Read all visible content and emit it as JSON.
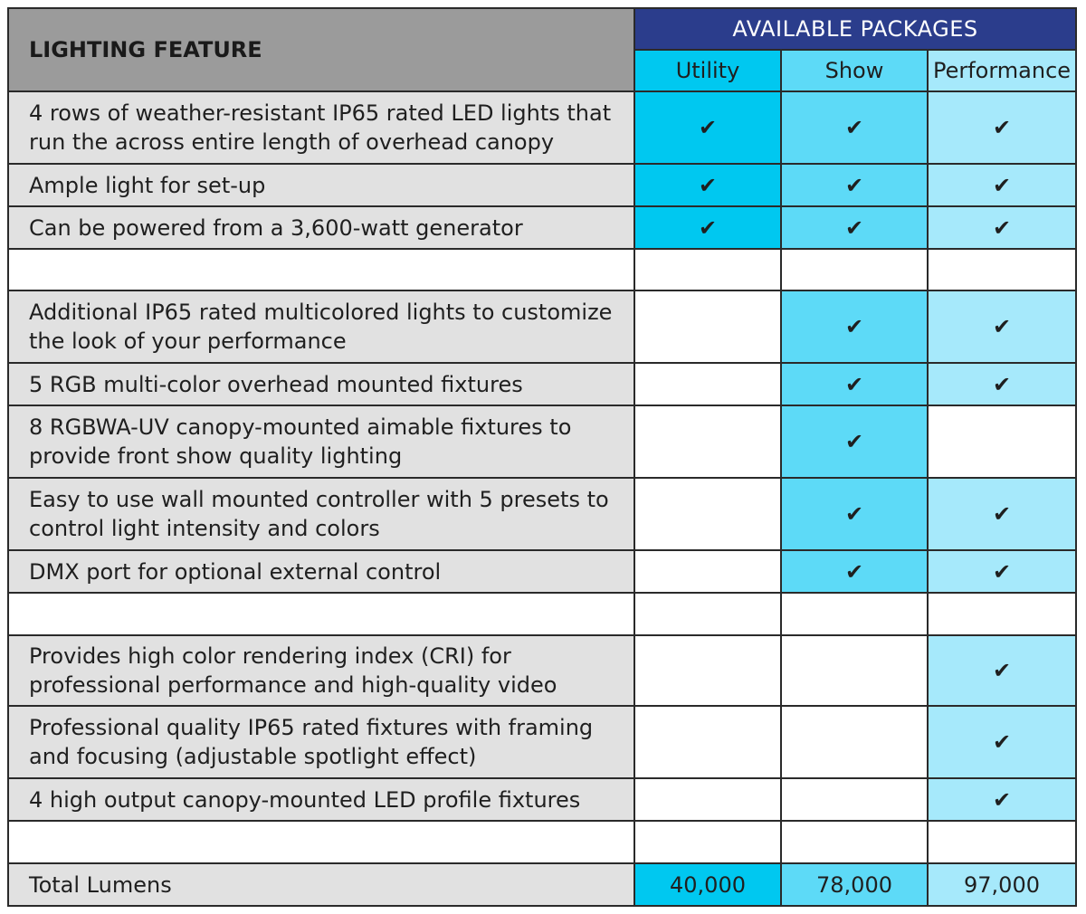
{
  "header": {
    "feature_label": "LIGHTING FEATURE",
    "packages_label": "AVAILABLE PACKAGES",
    "columns": [
      "Utility",
      "Show",
      "Performance"
    ]
  },
  "check_glyph": "✔",
  "rows": [
    {
      "feature": "4 rows of weather-resistant IP65 rated LED lights that run the across entire length of overhead canopy",
      "utility": "✔",
      "show": "✔",
      "performance": "✔"
    },
    {
      "feature": "Ample light for set-up",
      "utility": "✔",
      "show": "✔",
      "performance": "✔"
    },
    {
      "feature": "Can be powered from a 3,600-watt generator",
      "utility": "✔",
      "show": "✔",
      "performance": "✔"
    },
    {
      "feature": "Additional IP65 rated multicolored lights to customize the look of your performance",
      "utility": "",
      "show": "✔",
      "performance": "✔"
    },
    {
      "feature": "5 RGB multi-color overhead mounted fixtures",
      "utility": "",
      "show": "✔",
      "performance": "✔"
    },
    {
      "feature": "8 RGBWA-UV canopy-mounted aimable fixtures to provide front show quality lighting",
      "utility": "",
      "show": "✔",
      "performance": ""
    },
    {
      "feature": "Easy to use wall mounted controller with 5 presets to control light intensity and colors",
      "utility": "",
      "show": "✔",
      "performance": "✔"
    },
    {
      "feature": "DMX port for optional external control",
      "utility": "",
      "show": "✔",
      "performance": "✔"
    },
    {
      "feature": "Provides high color rendering index (CRI) for professional performance and high-quality video",
      "utility": "",
      "show": "",
      "performance": "✔"
    },
    {
      "feature": "Professional quality IP65 rated fixtures with framing and focusing (adjustable spotlight effect)",
      "utility": "",
      "show": "",
      "performance": "✔"
    },
    {
      "feature": "4 high output canopy-mounted LED profile fixtures",
      "utility": "",
      "show": "",
      "performance": "✔"
    }
  ],
  "totals": {
    "label": "Total Lumens",
    "utility": "40,000",
    "show": "78,000",
    "performance": "97,000"
  },
  "colors": {
    "header_feature_bg": "#9b9b9b",
    "header_packages_bg": "#2b3d8c",
    "utility_col": "#00c8f0",
    "show_col": "#5ddaf7",
    "performance_col": "#a6e9fb",
    "feature_bg": "#e1e1e1"
  }
}
